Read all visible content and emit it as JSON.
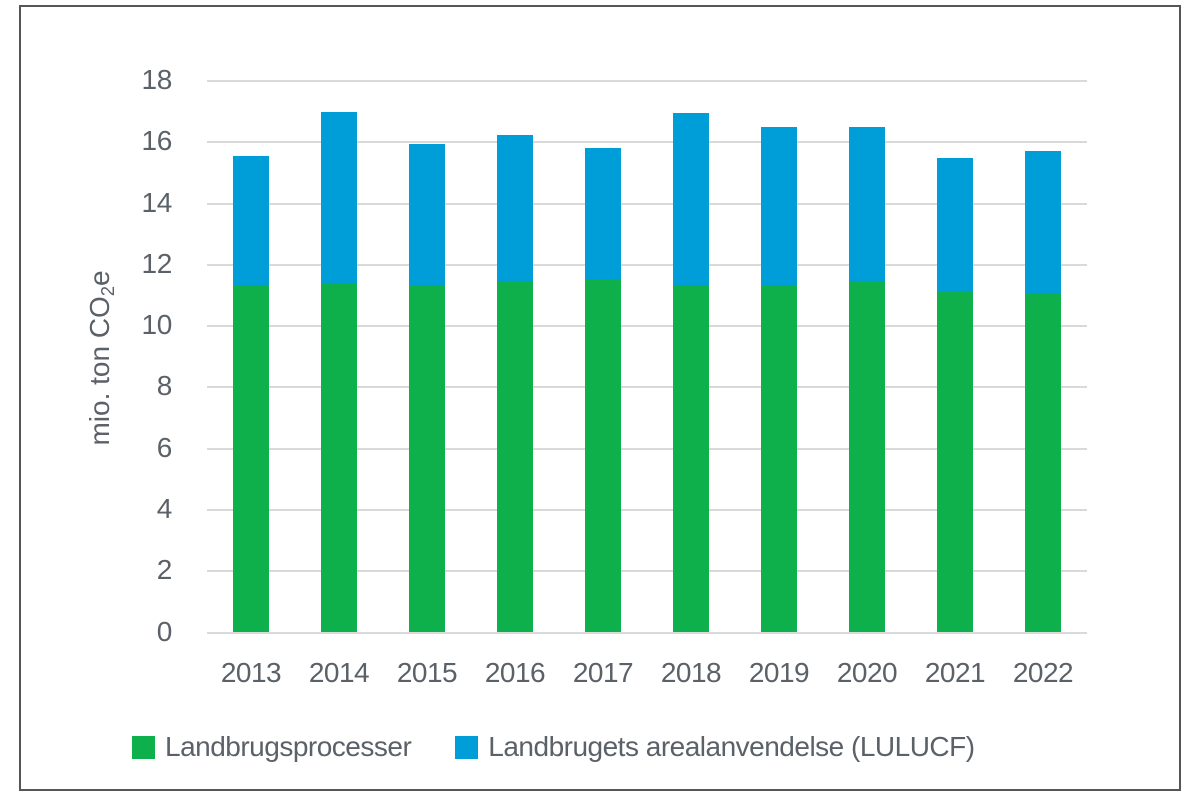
{
  "chart_data": {
    "type": "bar",
    "stacked": true,
    "title": "",
    "xlabel": "",
    "ylabel": "mio. ton CO2e",
    "ylabel_parts": {
      "prefix": "mio. ton CO",
      "sub": "2",
      "suffix": "e"
    },
    "ylim": [
      0,
      18
    ],
    "yticks": [
      0,
      2,
      4,
      6,
      8,
      10,
      12,
      14,
      16,
      18
    ],
    "grid": "horizontal-only",
    "legend_position": "bottom",
    "categories": [
      "2013",
      "2014",
      "2015",
      "2016",
      "2017",
      "2018",
      "2019",
      "2020",
      "2021",
      "2022"
    ],
    "series": [
      {
        "name": "Landbrugsprocesser",
        "color": "#0db04a",
        "values": [
          11.3,
          11.4,
          11.3,
          11.45,
          11.5,
          11.35,
          11.3,
          11.45,
          11.1,
          11.05
        ]
      },
      {
        "name": "Landbrugets arealanvendelse (LULUCF)",
        "color": "#009ed8",
        "values": [
          4.25,
          5.6,
          4.65,
          4.8,
          4.3,
          5.6,
          5.2,
          5.05,
          4.4,
          4.65
        ]
      }
    ],
    "stack_totals": [
      15.55,
      17.0,
      15.95,
      16.25,
      15.8,
      16.95,
      16.5,
      16.5,
      15.5,
      15.7
    ]
  },
  "colors": {
    "gridline": "#d9d9d9",
    "text": "#5a6168",
    "frame_border": "#54565a",
    "background": "#ffffff"
  }
}
